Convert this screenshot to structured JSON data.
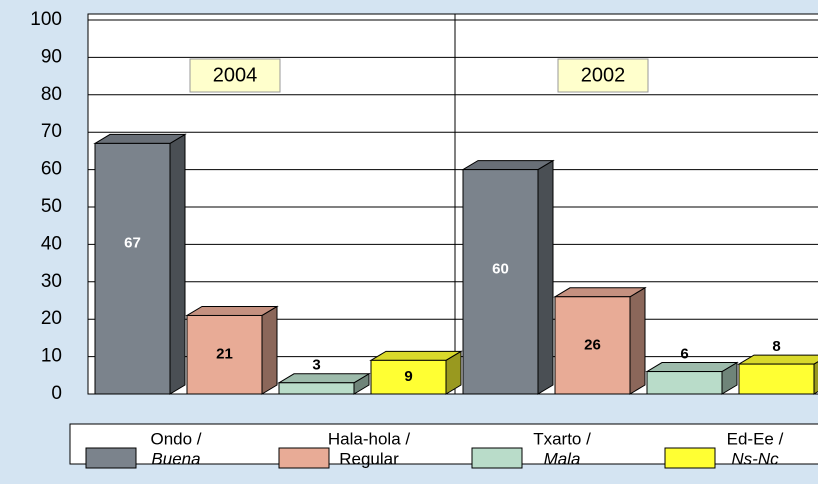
{
  "chart_data": {
    "type": "bar",
    "categories": [
      "2004",
      "2002"
    ],
    "series": [
      {
        "name": [
          "Ondo /",
          "Buena"
        ],
        "color": "#7b838c",
        "values": [
          67,
          60
        ]
      },
      {
        "name": [
          "Hala-hola /",
          "Regular"
        ],
        "color": "#e8ab96",
        "values": [
          21,
          26
        ]
      },
      {
        "name": [
          "Txarto /",
          "Mala"
        ],
        "color": "#b9dcc9",
        "values": [
          3,
          6
        ]
      },
      {
        "name": [
          "Ed-Ee /",
          "Ns-Nc"
        ],
        "color": "#ffff33",
        "values": [
          9,
          8
        ]
      }
    ],
    "ylim": [
      0,
      100
    ],
    "yticks": [
      0,
      10,
      20,
      30,
      40,
      50,
      60,
      70,
      80,
      90,
      100
    ],
    "grid": true
  }
}
